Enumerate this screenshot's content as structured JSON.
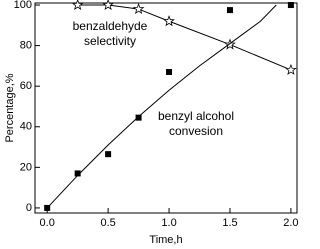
{
  "chart_data": {
    "type": "scatter",
    "xlabel": "Time,h",
    "ylabel": "Percentage,%",
    "xlim": [
      -0.1,
      2.05
    ],
    "ylim": [
      -2.5,
      101
    ],
    "xticks": [
      {
        "value": 0,
        "label": "0.0"
      },
      {
        "value": 0.5,
        "label": "0.5"
      },
      {
        "value": 1,
        "label": "1.0"
      },
      {
        "value": 1.5,
        "label": "1.5"
      },
      {
        "value": 2,
        "label": "2.0"
      }
    ],
    "yticks": [
      0,
      20,
      40,
      60,
      80,
      100
    ],
    "annotations": [
      [
        "benzaldehyde",
        "selectivity"
      ],
      [
        "benzyl alcohol",
        "convesion"
      ]
    ],
    "series": [
      {
        "marker": "square",
        "line": false,
        "color": "#000000",
        "x": [
          0,
          0.25,
          0.5,
          0.75,
          1.0,
          1.5,
          2.0
        ],
        "values": [
          0,
          17,
          26.5,
          44.5,
          67,
          97.5,
          100
        ]
      },
      {
        "marker": "star",
        "line": true,
        "color": "#000000",
        "x": [
          0.25,
          0.5,
          0.75,
          1.0,
          1.5,
          2.0
        ],
        "values": [
          100,
          100,
          98,
          92,
          80.5,
          68
        ]
      },
      {
        "marker": "none",
        "line": true,
        "color": "#000000",
        "x": [
          0,
          0.25,
          0.5,
          0.75,
          1.0,
          1.25,
          1.5,
          1.75,
          1.88
        ],
        "values": [
          0,
          16,
          31,
          45,
          58,
          70,
          81,
          92,
          100
        ]
      }
    ]
  }
}
